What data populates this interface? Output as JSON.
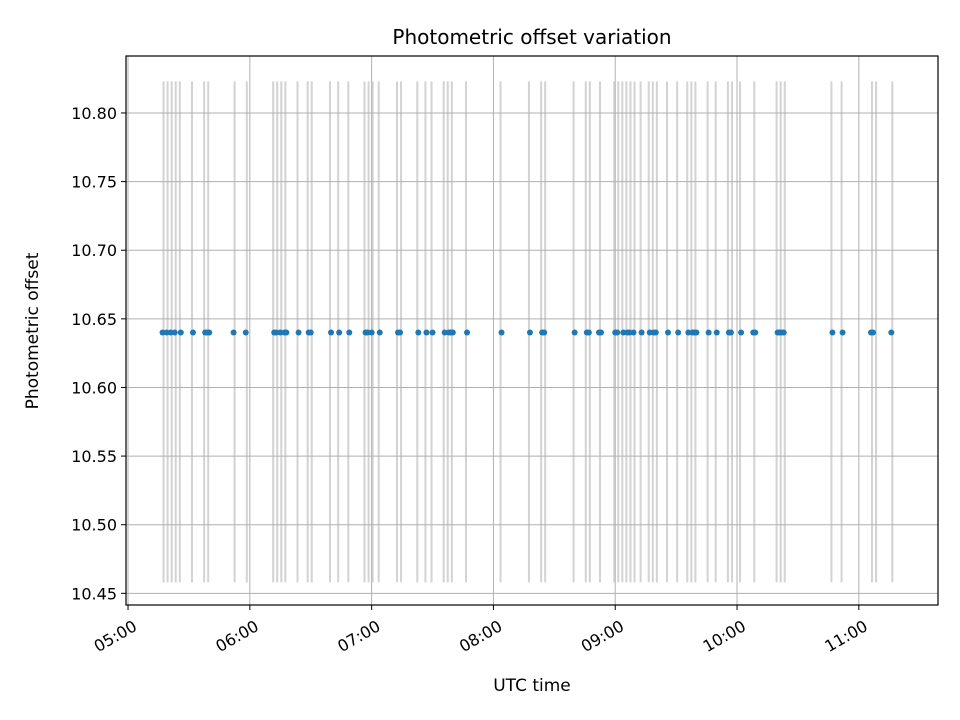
{
  "chart_data": {
    "type": "scatter",
    "title": "Photometric offset variation",
    "xlabel": "UTC time",
    "ylabel": "Photometric offset",
    "xlim": [
      "04:59",
      "11:39"
    ],
    "ylim": [
      10.4415,
      10.8415
    ],
    "x_ticks": [
      "05:00",
      "06:00",
      "07:00",
      "08:00",
      "09:00",
      "10:00",
      "11:00"
    ],
    "y_ticks": [
      "10.45",
      "10.50",
      "10.55",
      "10.60",
      "10.65",
      "10.70",
      "10.75",
      "10.80"
    ],
    "grid": true,
    "band_range": [
      10.458,
      10.823
    ],
    "colors": {
      "points": "#1f77b4",
      "bands": "#d3d3d3",
      "grid": "#b0b0b0",
      "axes": "#000000"
    },
    "series": [
      {
        "values": 10.64,
        "x": [
          "05:17",
          "05:19",
          "05:21",
          "05:23",
          "05:26",
          "05:32",
          "05:38",
          "05:39",
          "05:40",
          "05:52",
          "05:58",
          "06:12",
          "06:13",
          "06:15",
          "06:17",
          "06:18",
          "06:24",
          "06:29",
          "06:30",
          "06:40",
          "06:44",
          "06:49",
          "06:57",
          "06:58",
          "07:00",
          "07:04",
          "07:13",
          "07:14",
          "07:23",
          "07:27",
          "07:30",
          "07:36",
          "07:38",
          "07:39",
          "07:40",
          "07:47",
          "08:04",
          "08:18",
          "08:24",
          "08:25",
          "08:40",
          "08:46",
          "08:47",
          "08:52",
          "08:53",
          "09:00",
          "09:01",
          "09:04",
          "09:06",
          "09:07",
          "09:09",
          "09:13",
          "09:17",
          "09:19",
          "09:20",
          "09:26",
          "09:31",
          "09:36",
          "09:38",
          "09:39",
          "09:40",
          "09:46",
          "09:50",
          "09:56",
          "09:57",
          "10:02",
          "10:08",
          "10:09",
          "10:20",
          "10:21",
          "10:22",
          "10:23",
          "10:47",
          "10:52",
          "11:06",
          "11:07",
          "11:16"
        ]
      }
    ],
    "bands": [
      [
        "05:17",
        "05:18"
      ],
      [
        "05:19",
        "05:20"
      ],
      [
        "05:21",
        "05:22"
      ],
      [
        "05:23",
        "05:24"
      ],
      [
        "05:25",
        "05:26"
      ],
      [
        "05:31",
        "05:32"
      ],
      [
        "05:37",
        "05:38"
      ],
      [
        "05:39",
        "05:40"
      ],
      [
        "05:52",
        "05:53"
      ],
      [
        "05:58",
        "05:59"
      ],
      [
        "06:11",
        "06:12"
      ],
      [
        "06:13",
        "06:14"
      ],
      [
        "06:15",
        "06:16"
      ],
      [
        "06:17",
        "06:18"
      ],
      [
        "06:23",
        "06:24"
      ],
      [
        "06:28",
        "06:29"
      ],
      [
        "06:30",
        "06:31"
      ],
      [
        "06:39",
        "06:40"
      ],
      [
        "06:43",
        "06:44"
      ],
      [
        "06:48",
        "06:49"
      ],
      [
        "06:56",
        "06:57"
      ],
      [
        "06:58",
        "06:59"
      ],
      [
        "07:00",
        "07:01"
      ],
      [
        "07:03",
        "07:04"
      ],
      [
        "07:12",
        "07:13"
      ],
      [
        "07:14",
        "07:15"
      ],
      [
        "07:22",
        "07:23"
      ],
      [
        "07:26",
        "07:27"
      ],
      [
        "07:29",
        "07:30"
      ],
      [
        "07:35",
        "07:36"
      ],
      [
        "07:37",
        "07:38"
      ],
      [
        "07:39",
        "07:40"
      ],
      [
        "07:46",
        "07:47"
      ],
      [
        "08:03",
        "08:04"
      ],
      [
        "08:17",
        "08:18"
      ],
      [
        "08:23",
        "08:24"
      ],
      [
        "08:25",
        "08:26"
      ],
      [
        "08:39",
        "08:40"
      ],
      [
        "08:45",
        "08:46"
      ],
      [
        "08:47",
        "08:48"
      ],
      [
        "08:52",
        "08:53"
      ],
      [
        "08:59",
        "09:00"
      ],
      [
        "09:01",
        "09:02"
      ],
      [
        "09:03",
        "09:04"
      ],
      [
        "09:05",
        "09:06"
      ],
      [
        "09:07",
        "09:08"
      ],
      [
        "09:09",
        "09:10"
      ],
      [
        "09:12",
        "09:13"
      ],
      [
        "09:16",
        "09:17"
      ],
      [
        "09:18",
        "09:19"
      ],
      [
        "09:20",
        "09:21"
      ],
      [
        "09:25",
        "09:26"
      ],
      [
        "09:30",
        "09:31"
      ],
      [
        "09:35",
        "09:36"
      ],
      [
        "09:37",
        "09:38"
      ],
      [
        "09:39",
        "09:40"
      ],
      [
        "09:45",
        "09:46"
      ],
      [
        "09:49",
        "09:50"
      ],
      [
        "09:55",
        "09:56"
      ],
      [
        "09:57",
        "09:58"
      ],
      [
        "10:01",
        "10:02"
      ],
      [
        "10:08",
        "10:09"
      ],
      [
        "10:19",
        "10:20"
      ],
      [
        "10:21",
        "10:22"
      ],
      [
        "10:23",
        "10:24"
      ],
      [
        "10:46",
        "10:47"
      ],
      [
        "10:51",
        "10:52"
      ],
      [
        "11:06",
        "11:07"
      ],
      [
        "11:08",
        "11:09"
      ],
      [
        "11:16",
        "11:17"
      ]
    ]
  }
}
